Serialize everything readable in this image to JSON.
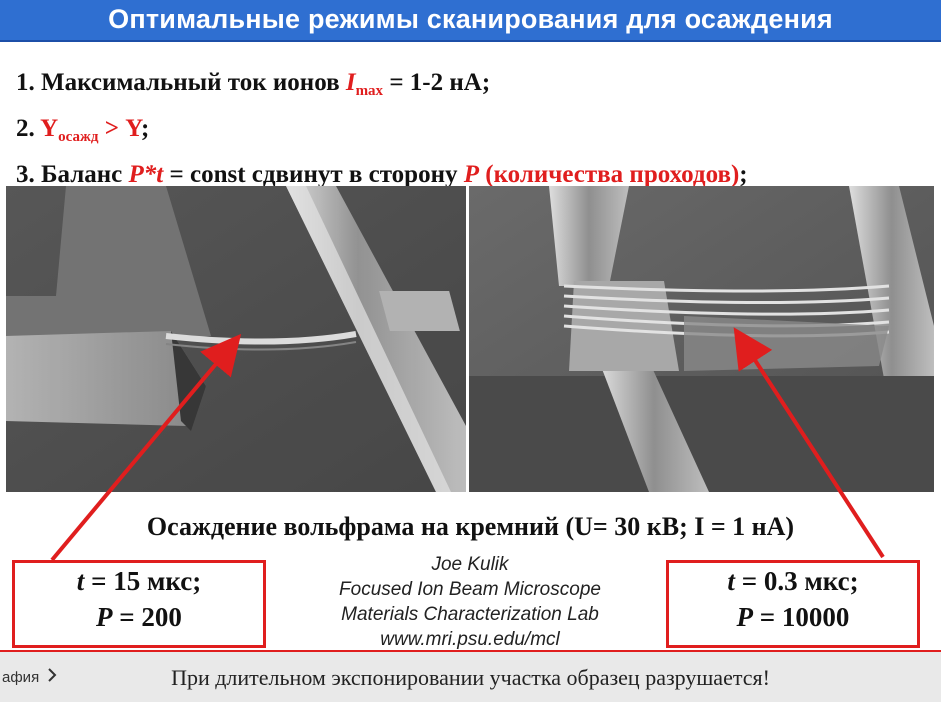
{
  "slide": {
    "title": "Оптимальные режимы сканирования для осаждения",
    "rule1": {
      "prefix": "1. Максимальный ток ионов ",
      "var": "I",
      "sub": "max",
      "suffix": " = 1-2 нА;"
    },
    "rule2": {
      "prefix": "2. ",
      "y_sub_label": "Y",
      "y_sub": "осажд",
      "gt": " > Y",
      "suffix": ";"
    },
    "rule3": {
      "prefix": "3. Баланс ",
      "expr": "P*t",
      "mid": " = const сдвинут в сторону ",
      "p": "P",
      "paren": " (количества проходов)",
      "suffix": ";"
    },
    "caption": "Осаждение вольфрама на кремний (U= 30 кВ; I = 1 нА)",
    "credit": {
      "line1": "Joe Kulik",
      "line2": "Focused Ion Beam Microscope",
      "line3": "Materials Characterization Lab",
      "line4": "www.mri.psu.edu/mcl"
    },
    "left_box": {
      "t_label": "t",
      "t_value": " = 15 мкс;",
      "p_label": "P",
      "p_value": " = 200"
    },
    "right_box": {
      "t_label": "t",
      "t_value": " = 0.3 мкс;",
      "p_label": "P",
      "p_value": " = 10000"
    }
  },
  "player": {
    "chapter_label": "афия",
    "chapter_icon": "chevron-right-icon",
    "subtitle": "При длительном экспонировании участка образец разрушается!"
  },
  "colors": {
    "accent_red": "#e01e1e",
    "title_blue": "#2f6fd1"
  }
}
